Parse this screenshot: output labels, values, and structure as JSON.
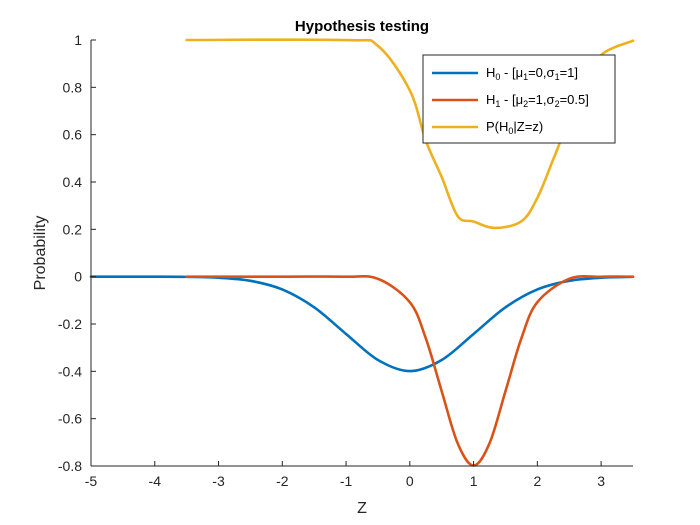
{
  "chart_data": {
    "type": "line",
    "title": "Hypothesis testing",
    "xlabel": "Z",
    "ylabel": "Probability",
    "xlim": [
      -5,
      3.5
    ],
    "ylim": [
      -0.8,
      1
    ],
    "xticks": [
      -5,
      -4,
      -3,
      -2,
      -1,
      0,
      1,
      2,
      3
    ],
    "yticks": [
      -0.8,
      -0.6,
      -0.4,
      -0.2,
      0,
      0.2,
      0.4,
      0.6,
      0.8,
      1
    ],
    "xtick_labels": [
      "-5",
      "-4",
      "-3",
      "-2",
      "-1",
      "0",
      "1",
      "2",
      "3"
    ],
    "ytick_labels": [
      "-0.8",
      "-0.6",
      "-0.4",
      "-0.2",
      "0",
      "0.2",
      "0.4",
      "0.6",
      "0.8",
      "1"
    ],
    "grid": false,
    "legend_position": "top-right",
    "series": [
      {
        "name": "H0 - [μ1=0,σ1=1]",
        "color": "#0072BD",
        "x": [
          -5,
          -4.5,
          -4,
          -3.5,
          -3,
          -2.5,
          -2,
          -1.5,
          -1,
          -0.5,
          0,
          0.5,
          1,
          1.5,
          2,
          2.5,
          3,
          3.5
        ],
        "y": [
          0,
          0,
          -0.0001,
          -0.0009,
          -0.0044,
          -0.0175,
          -0.054,
          -0.1295,
          -0.242,
          -0.352,
          -0.399,
          -0.352,
          -0.242,
          -0.1295,
          -0.054,
          -0.0175,
          -0.0044,
          -0.0009
        ]
      },
      {
        "name": "H1 - [μ2=1,σ2=0.5]",
        "color": "#D95319",
        "x": [
          -3.5,
          -2,
          -1,
          -0.5,
          0,
          0.25,
          0.5,
          0.75,
          1,
          1.25,
          1.5,
          1.75,
          2,
          2.5,
          3,
          3.5
        ],
        "y": [
          0,
          0,
          -0.0001,
          -0.0089,
          -0.108,
          -0.26,
          -0.484,
          -0.704,
          -0.798,
          -0.704,
          -0.484,
          -0.26,
          -0.108,
          -0.0089,
          -0.0003,
          0
        ]
      },
      {
        "name": "P(H0|Z=z)",
        "color": "#EDB120",
        "x": [
          -3.5,
          -1,
          -0.5,
          0,
          0.25,
          0.5,
          0.75,
          1,
          1.333,
          1.75,
          2,
          2.25,
          2.5,
          2.75,
          3,
          3.5
        ],
        "y": [
          1,
          0.9996,
          0.975,
          0.787,
          0.575,
          0.421,
          0.256,
          0.233,
          0.206,
          0.234,
          0.333,
          0.496,
          0.663,
          0.801,
          0.936,
          0.997
        ]
      }
    ]
  },
  "legend": {
    "entries": [
      {
        "parts": [
          [
            "H",
            false
          ],
          [
            "0",
            true
          ],
          [
            " - [",
            false
          ],
          [
            "μ",
            false
          ],
          [
            "1",
            true
          ],
          [
            "=0,",
            false
          ],
          [
            "σ",
            false
          ],
          [
            "1",
            true
          ],
          [
            "=1]",
            false
          ]
        ]
      },
      {
        "parts": [
          [
            "H",
            false
          ],
          [
            "1",
            true
          ],
          [
            " - [",
            false
          ],
          [
            "μ",
            false
          ],
          [
            "2",
            true
          ],
          [
            "=1,",
            false
          ],
          [
            "σ",
            false
          ],
          [
            "2",
            true
          ],
          [
            "=0.5]",
            false
          ]
        ]
      },
      {
        "parts": [
          [
            "P(H",
            false
          ],
          [
            "0",
            true
          ],
          [
            "|Z=z)",
            false
          ]
        ]
      }
    ]
  }
}
